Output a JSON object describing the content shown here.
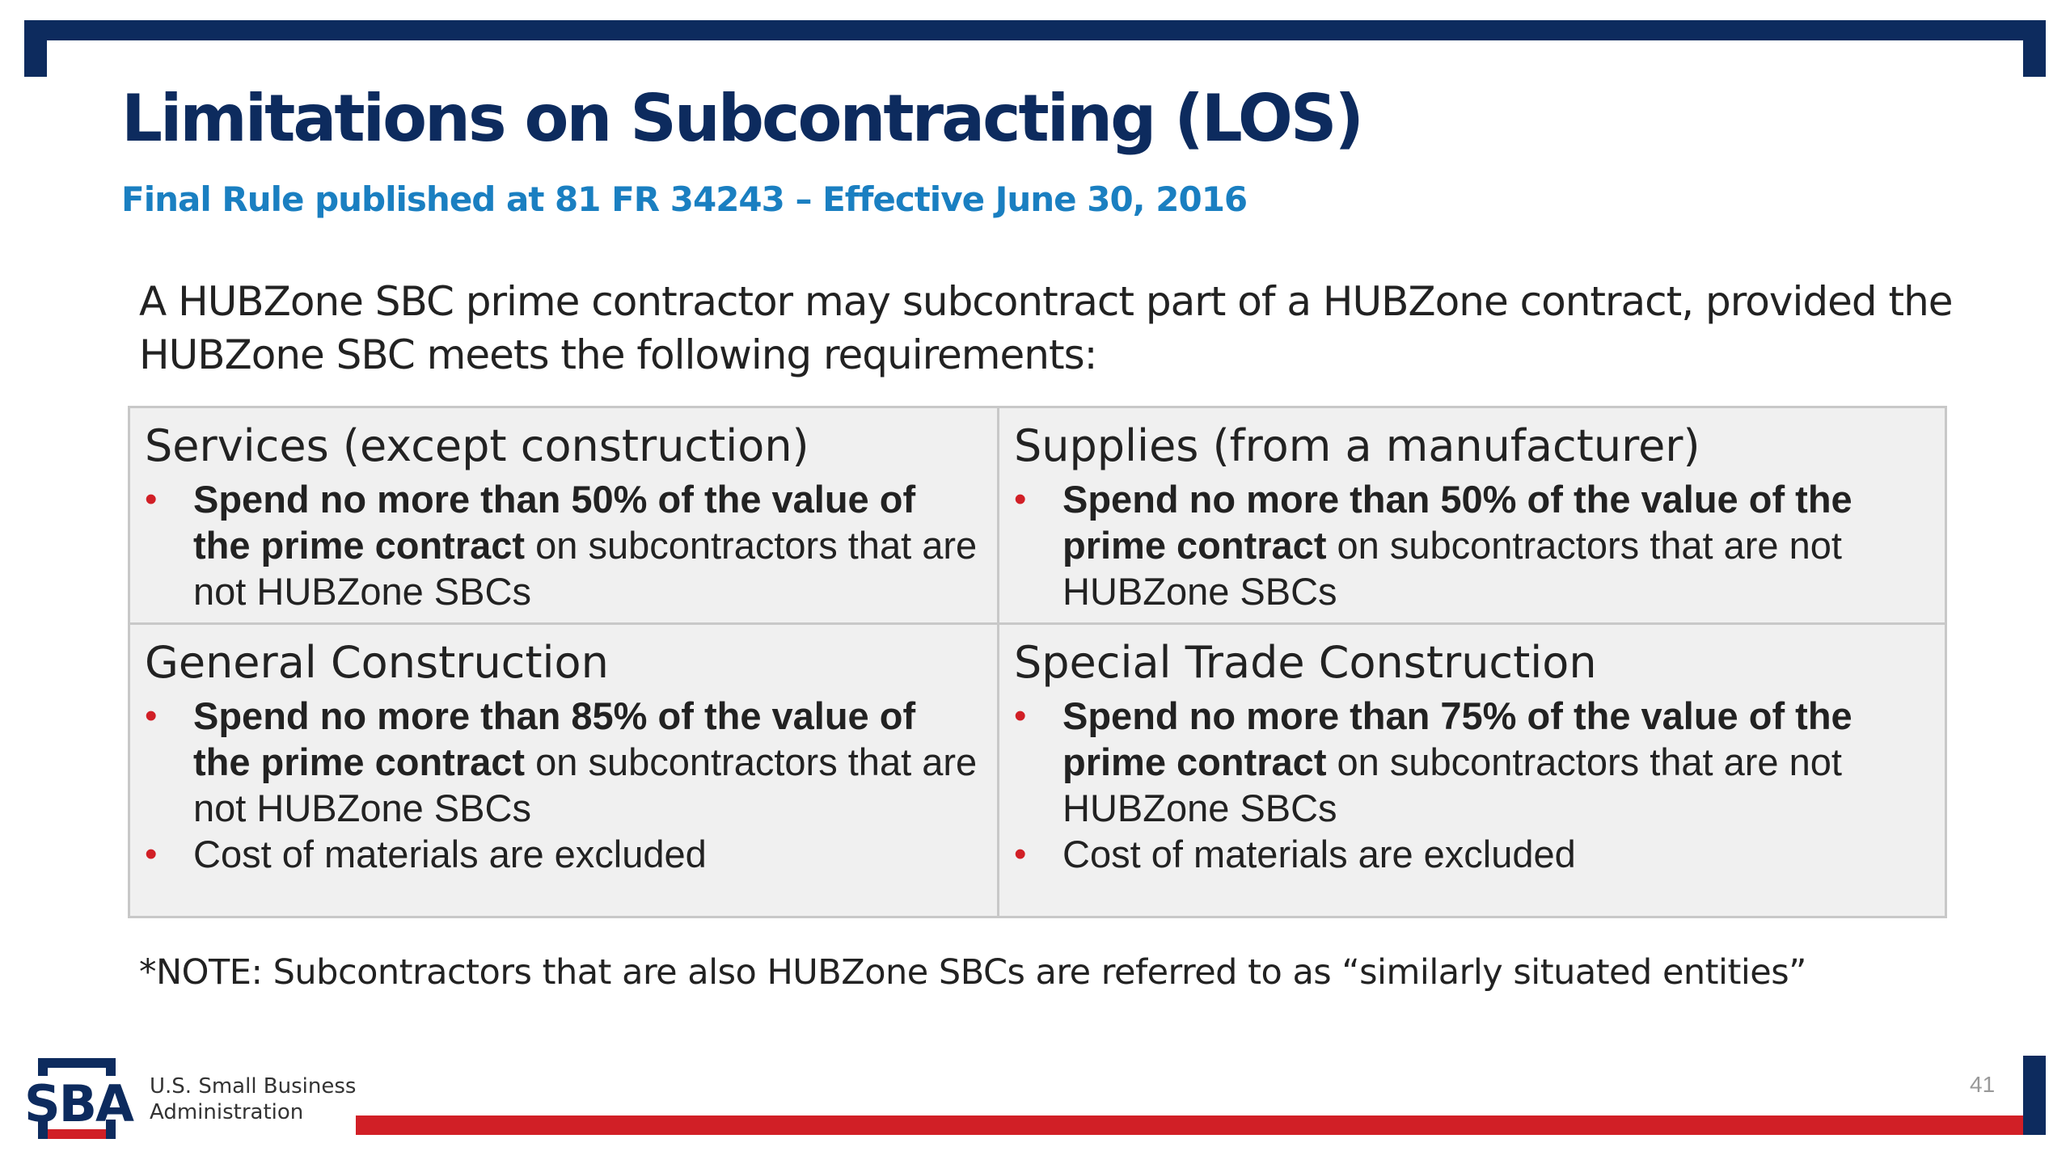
{
  "slide": {
    "title": "Limitations on Subcontracting (LOS)",
    "subtitle": "Final Rule published at 81 FR 34243 – Effective June 30, 2016",
    "intro": "A HUBZone SBC prime contractor may subcontract part of a HUBZone contract, provided the HUBZone SBC meets the following requirements:",
    "cells": [
      {
        "title": "Services (except construction)",
        "bullet1_bold": "Spend no more than 50% of the value of the prime contract",
        "bullet1_rest": " on subcontractors that are not HUBZone SBCs"
      },
      {
        "title": "Supplies (from a manufacturer)",
        "bullet1_bold": "Spend no more than 50% of the value of the prime contract",
        "bullet1_rest": " on subcontractors that are not HUBZone SBCs"
      },
      {
        "title": "General Construction",
        "bullet1_bold": "Spend no more than 85% of the value of the prime contract",
        "bullet1_rest": " on subcontractors that are not HUBZone SBCs",
        "bullet2": "Cost of materials are excluded"
      },
      {
        "title": "Special Trade Construction",
        "bullet1_bold": "Spend no more than 75% of the value of the prime contract",
        "bullet1_rest": " on subcontractors that are not HUBZone SBCs",
        "bullet2": "Cost of materials are excluded"
      }
    ],
    "note": "*NOTE: Subcontractors that are also HUBZone SBCs are referred to as “similarly situated entities”",
    "page_number": "41"
  },
  "footer": {
    "logo_text": "SBA",
    "org_line1": "U.S. Small Business",
    "org_line2": "Administration"
  },
  "colors": {
    "navy": "#0d2b5e",
    "blue": "#1a7fc1",
    "red": "#d11f26"
  },
  "icons": [
    "sba-logo-icon"
  ]
}
